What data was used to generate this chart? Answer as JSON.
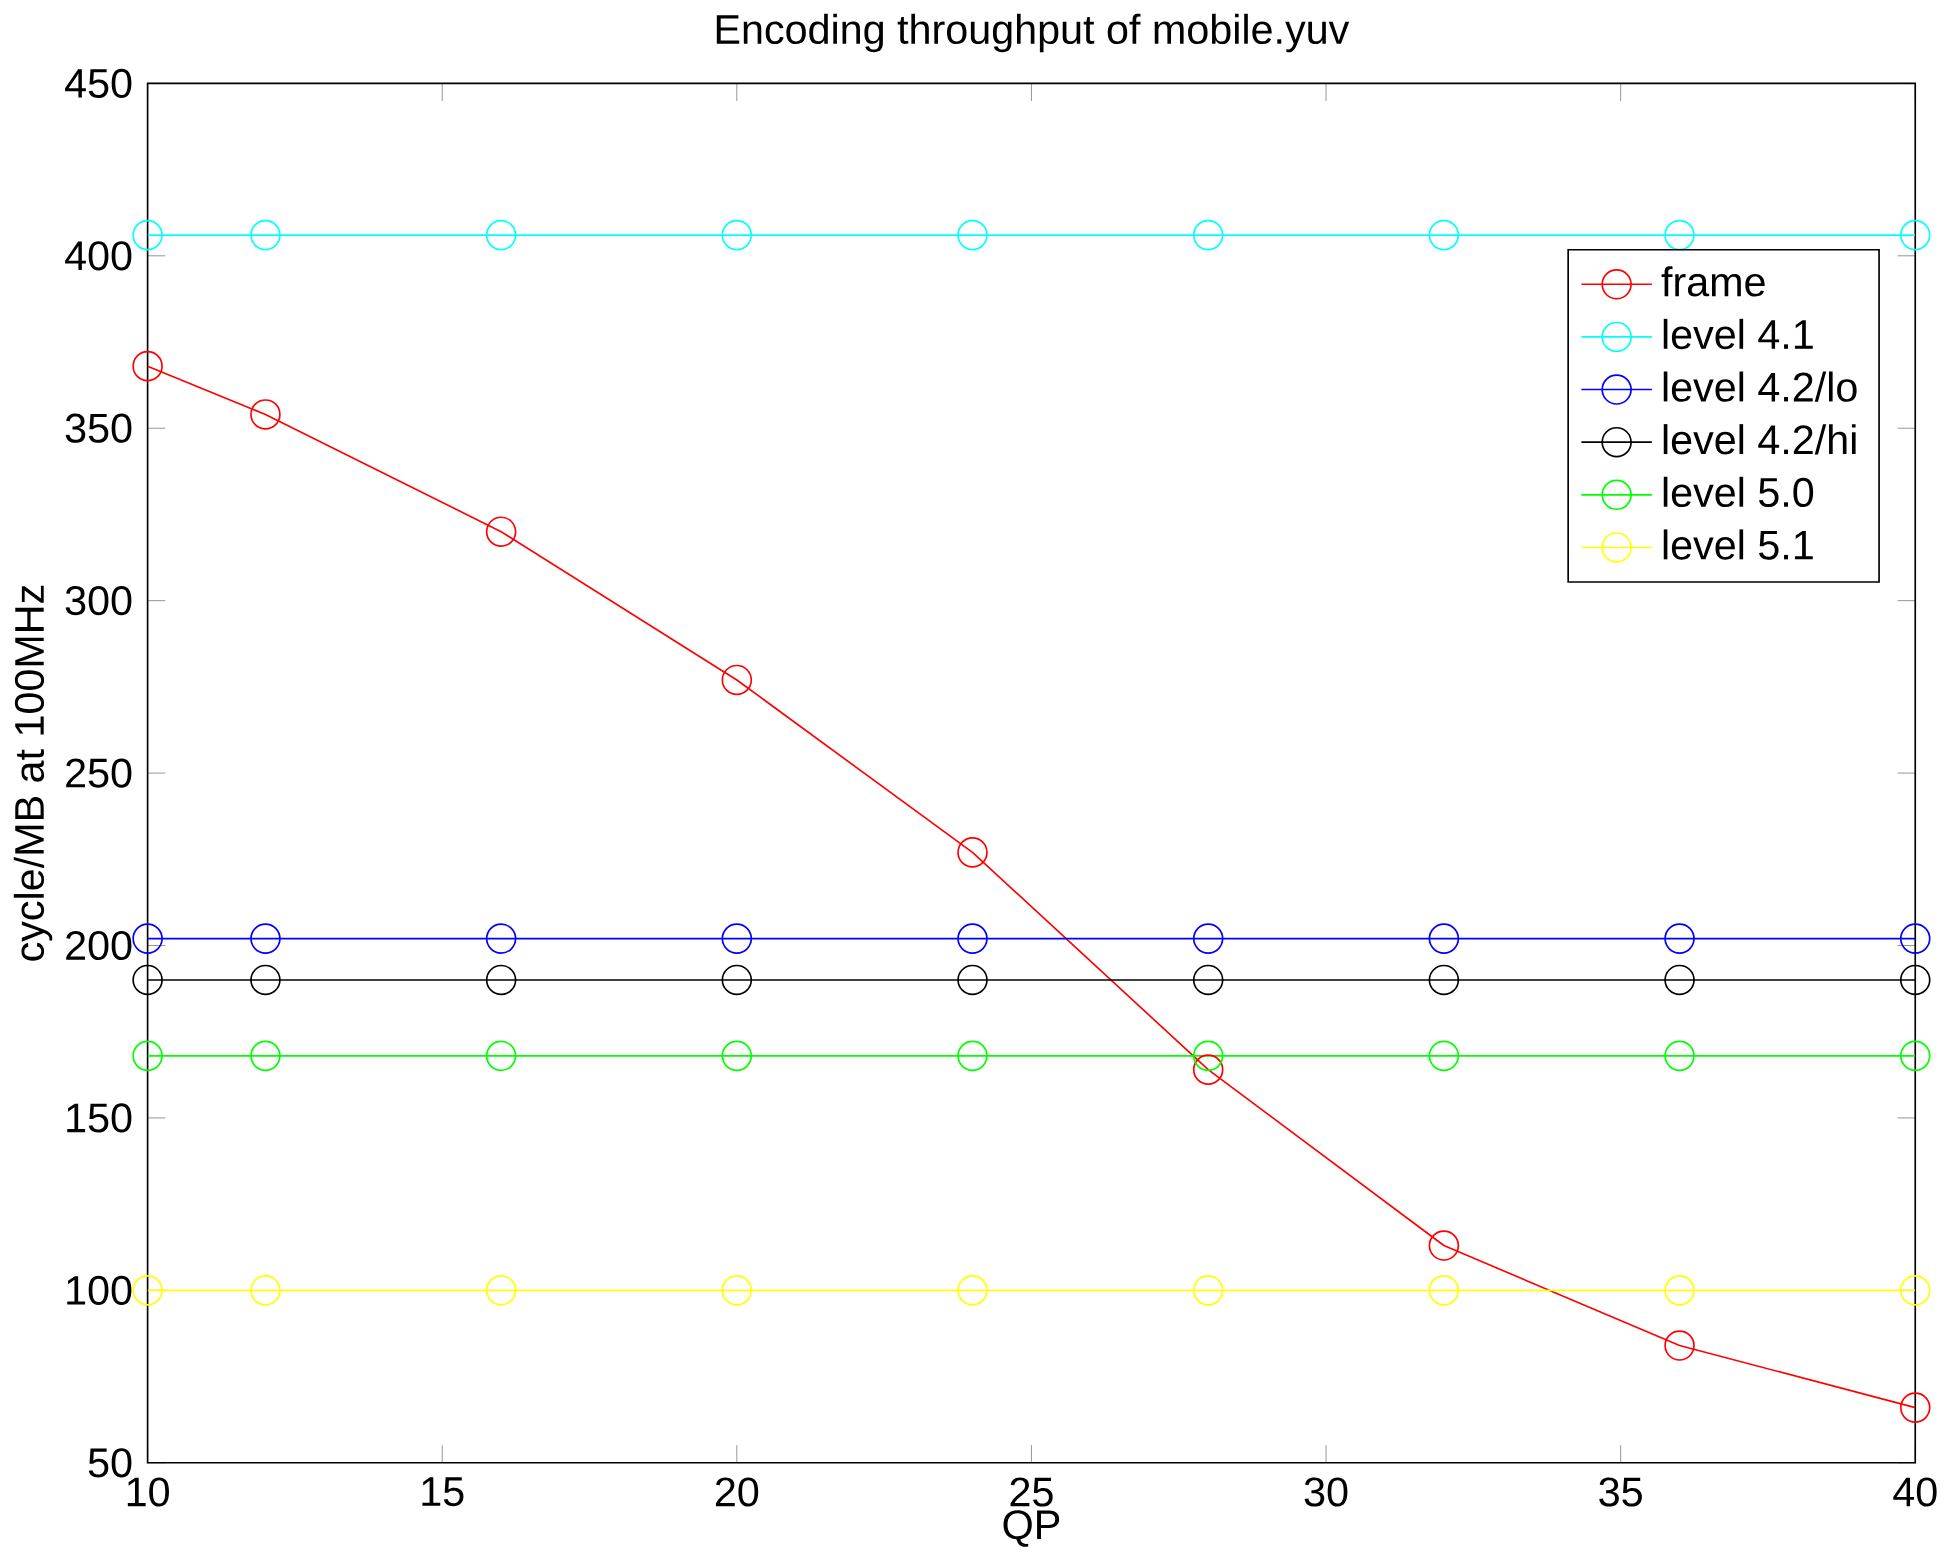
{
  "chart_data": {
    "type": "line",
    "title": "Encoding throughput of mobile.yuv",
    "xlabel": "QP",
    "ylabel": "cycle/MB at 100MHz",
    "x": [
      10,
      12,
      16,
      20,
      24,
      28,
      32,
      36,
      40
    ],
    "series": [
      {
        "name": "frame",
        "color": "#ff0000",
        "values": [
          368,
          354,
          320,
          277,
          227,
          164,
          113,
          84,
          66
        ]
      },
      {
        "name": "level 4.1",
        "color": "#00ffff",
        "values": [
          406,
          406,
          406,
          406,
          406,
          406,
          406,
          406,
          406
        ]
      },
      {
        "name": "level 4.2/lo",
        "color": "#0000ff",
        "values": [
          202,
          202,
          202,
          202,
          202,
          202,
          202,
          202,
          202
        ]
      },
      {
        "name": "level 4.2/hi",
        "color": "#000000",
        "values": [
          190,
          190,
          190,
          190,
          190,
          190,
          190,
          190,
          190
        ]
      },
      {
        "name": "level 5.0",
        "color": "#00ff00",
        "values": [
          168,
          168,
          168,
          168,
          168,
          168,
          168,
          168,
          168
        ]
      },
      {
        "name": "level 5.1",
        "color": "#ffff00",
        "values": [
          100,
          100,
          100,
          100,
          100,
          100,
          100,
          100,
          100
        ]
      }
    ],
    "xlim": [
      10,
      40
    ],
    "xticks": [
      10,
      15,
      20,
      25,
      30,
      35,
      40
    ],
    "ylim": [
      50,
      450
    ],
    "yticks": [
      50,
      100,
      150,
      200,
      250,
      300,
      350,
      400,
      450
    ],
    "legend": "top right",
    "marker": "circle",
    "line_style": "solid",
    "grid": false
  }
}
